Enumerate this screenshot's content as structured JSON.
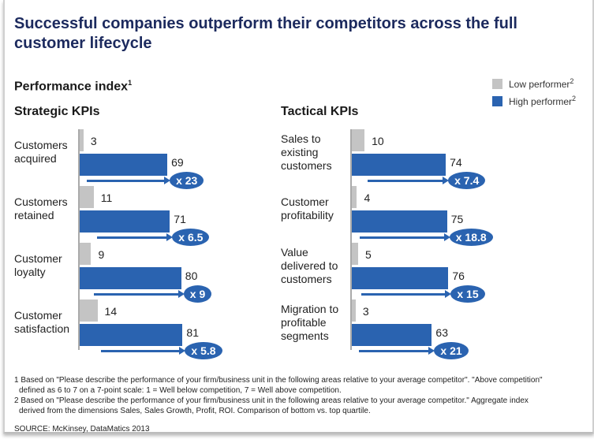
{
  "title": "Successful companies outperform their competitors across the full customer lifecycle",
  "subtitle": "Performance index",
  "subtitle_sup": "1",
  "legend": [
    {
      "label": "Low performer",
      "sup": "2",
      "color": "#c4c4c4"
    },
    {
      "label": "High performer",
      "sup": "2",
      "color": "#2a63b0"
    }
  ],
  "chart_data": [
    {
      "type": "bar",
      "title": "Strategic KPIs",
      "categories": [
        [
          "Customers",
          "acquired"
        ],
        [
          "Customers",
          "retained"
        ],
        [
          "Customer",
          "loyalty"
        ],
        [
          "Customer",
          "satisfaction"
        ]
      ],
      "series": [
        {
          "name": "Low performer",
          "values": [
            3,
            11,
            9,
            14
          ]
        },
        {
          "name": "High performer",
          "values": [
            69,
            71,
            80,
            81
          ]
        }
      ],
      "multipliers": [
        "x 23",
        "x 6.5",
        "x 9",
        "x 5.8"
      ]
    },
    {
      "type": "bar",
      "title": "Tactical KPIs",
      "categories": [
        [
          "Sales to",
          "existing",
          "customers"
        ],
        [
          "Customer",
          "profitability"
        ],
        [
          "Value",
          "delivered to",
          "customers"
        ],
        [
          "Migration to",
          "profitable",
          "segments"
        ]
      ],
      "series": [
        {
          "name": "Low performer",
          "values": [
            10,
            4,
            5,
            3
          ]
        },
        {
          "name": "High performer",
          "values": [
            74,
            75,
            76,
            63
          ]
        }
      ],
      "multipliers": [
        "x 7.4",
        "x 18.8",
        "x 15",
        "x 21"
      ]
    }
  ],
  "footnotes": [
    "1 Based on \"Please describe the performance of your firm/business unit in the following areas relative to your average competitor\". \"Above competition\"",
    "   defined as 6 to 7 on a 7-point scale: 1 = Well below competition, 7 = Well above competition.",
    "2 Based on \"Please describe the performance of your firm/business unit in the following areas relative to your average competitor.\" Aggregate index",
    "   derived from the dimensions Sales, Sales Growth, Profit, ROI. Comparison of bottom vs. top quartile."
  ],
  "source": "SOURCE: McKinsey, DataMatics 2013"
}
